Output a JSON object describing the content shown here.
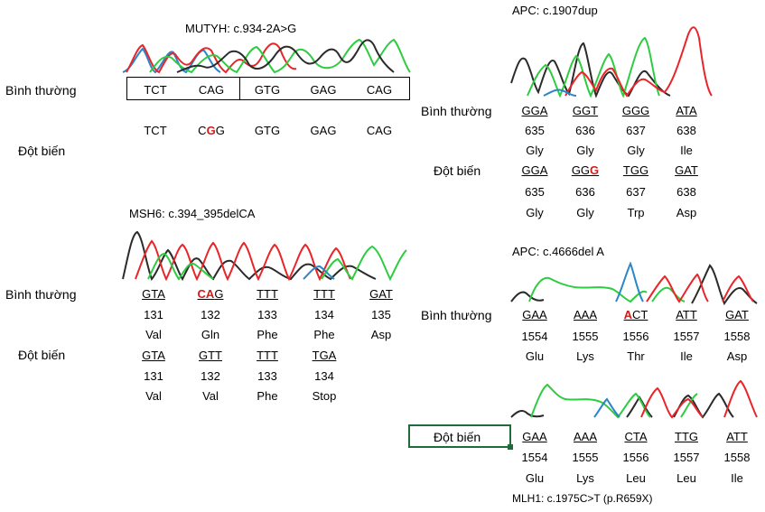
{
  "mutyh": {
    "title": "MUTYH: c.934-2A>G",
    "normal_label": "Bình thường",
    "mutant_label": "Đột biến",
    "normal_codons": [
      "TCT",
      "CAG",
      "GTG",
      "GAG",
      "CAG"
    ],
    "mutant_codons": [
      {
        "pre": "TCT",
        "hl": "",
        "post": ""
      },
      {
        "pre": "C",
        "hl": "G",
        "post": "G"
      },
      {
        "pre": "GTG",
        "hl": "",
        "post": ""
      },
      {
        "pre": "GAG",
        "hl": "",
        "post": ""
      },
      {
        "pre": "CAG",
        "hl": "",
        "post": ""
      }
    ]
  },
  "msh6": {
    "title": "MSH6: c.394_395delCA",
    "normal_label": "Bình thường",
    "mutant_label": "Đột biến",
    "normal": {
      "codons": [
        {
          "pre": "GTA",
          "hl": "",
          "post": ""
        },
        {
          "pre": "",
          "hl": "CA",
          "post": "G"
        },
        {
          "pre": "TTT",
          "hl": "",
          "post": ""
        },
        {
          "pre": "TTT",
          "hl": "",
          "post": ""
        },
        {
          "pre": "GAT",
          "hl": "",
          "post": ""
        }
      ],
      "positions": [
        "131",
        "132",
        "133",
        "134",
        "135"
      ],
      "aminos": [
        "Val",
        "Gln",
        "Phe",
        "Phe",
        "Asp"
      ]
    },
    "mutant": {
      "codons": [
        {
          "pre": "GTA",
          "hl": "",
          "post": ""
        },
        {
          "pre": "GTT",
          "hl": "",
          "post": ""
        },
        {
          "pre": "TTT",
          "hl": "",
          "post": ""
        },
        {
          "pre": "TGA",
          "hl": "",
          "post": ""
        }
      ],
      "positions": [
        "131",
        "132",
        "133",
        "134"
      ],
      "aminos": [
        "Val",
        "Val",
        "Phe",
        "Stop"
      ]
    }
  },
  "apc1": {
    "title": "APC: c.1907dup",
    "normal_label": "Bình thường",
    "mutant_label": "Đột biến",
    "normal": {
      "codons": [
        {
          "pre": "GGA",
          "hl": "",
          "post": ""
        },
        {
          "pre": "GGT",
          "hl": "",
          "post": ""
        },
        {
          "pre": "GGG",
          "hl": "",
          "post": ""
        },
        {
          "pre": "ATA",
          "hl": "",
          "post": ""
        }
      ],
      "positions": [
        "635",
        "636",
        "637",
        "638"
      ],
      "aminos": [
        "Gly",
        "Gly",
        "Gly",
        "Ile"
      ]
    },
    "mutant": {
      "codons": [
        {
          "pre": "GGA",
          "hl": "",
          "post": ""
        },
        {
          "pre": "GG",
          "hl": "G",
          "post": ""
        },
        {
          "pre": "TGG",
          "hl": "",
          "post": ""
        },
        {
          "pre": "GAT",
          "hl": "",
          "post": ""
        }
      ],
      "positions": [
        "635",
        "636",
        "637",
        "638"
      ],
      "aminos": [
        "Gly",
        "Gly",
        "Trp",
        "Asp"
      ]
    }
  },
  "apc2": {
    "title": "APC: c.4666del A",
    "normal_label": "Bình thường",
    "mutant_label": "Đột biến",
    "normal": {
      "codons": [
        {
          "pre": "GAA",
          "hl": "",
          "post": ""
        },
        {
          "pre": "AAA",
          "hl": "",
          "post": ""
        },
        {
          "pre": "",
          "hl": "A",
          "post": "CT"
        },
        {
          "pre": "ATT",
          "hl": "",
          "post": ""
        },
        {
          "pre": "GAT",
          "hl": "",
          "post": ""
        }
      ],
      "positions": [
        "1554",
        "1555",
        "1556",
        "1557",
        "1558"
      ],
      "aminos": [
        "Glu",
        "Lys",
        "Thr",
        "Ile",
        "Asp"
      ]
    },
    "mutant": {
      "codons": [
        {
          "pre": "GAA",
          "hl": "",
          "post": ""
        },
        {
          "pre": "AAA",
          "hl": "",
          "post": ""
        },
        {
          "pre": "CTA",
          "hl": "",
          "post": ""
        },
        {
          "pre": "TTG",
          "hl": "",
          "post": ""
        },
        {
          "pre": "ATT",
          "hl": "",
          "post": ""
        }
      ],
      "positions": [
        "1554",
        "1555",
        "1556",
        "1557",
        "1558"
      ],
      "aminos": [
        "Glu",
        "Lys",
        "Leu",
        "Leu",
        "Ile"
      ]
    }
  },
  "mlh1": {
    "caption": "MLH1: c.1975C>T (p.R659X)"
  },
  "colors": {
    "trace_black": "#2b2b2b",
    "trace_green": "#2ecc40",
    "trace_red": "#e8262a",
    "trace_blue": "#2a86c8",
    "highlight_red": "#d11b1b",
    "selection_green": "#1f6b3a"
  }
}
